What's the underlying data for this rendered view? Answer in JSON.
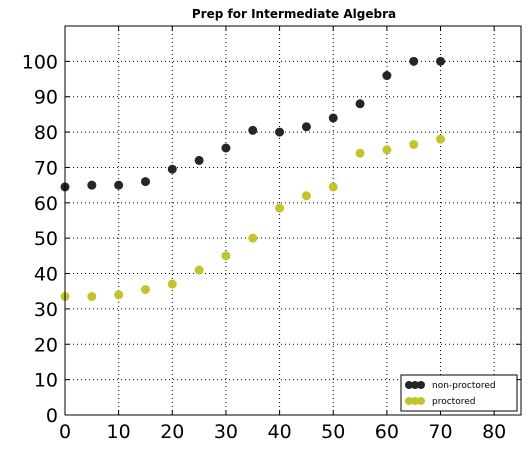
{
  "chart_data": {
    "type": "scatter",
    "title": "Prep for Intermediate Algebra",
    "xlabel": "",
    "ylabel": "",
    "xlim": [
      0,
      85
    ],
    "ylim": [
      0,
      110
    ],
    "xticks": [
      0,
      10,
      20,
      30,
      40,
      50,
      60,
      70,
      80
    ],
    "yticks": [
      0,
      10,
      20,
      30,
      40,
      50,
      60,
      70,
      80,
      90,
      100
    ],
    "grid": true,
    "legend_position": "bottom-right",
    "series": [
      {
        "name": "non-proctored",
        "color": "#262626",
        "x": [
          0,
          5,
          10,
          15,
          20,
          25,
          30,
          35,
          40,
          45,
          50,
          55,
          60,
          65,
          70
        ],
        "y": [
          64.5,
          65,
          65,
          66,
          69.5,
          72,
          75.5,
          80.5,
          80,
          81.5,
          84,
          88,
          96,
          100,
          100
        ]
      },
      {
        "name": "proctored",
        "color": "#c4c42a",
        "x": [
          0,
          5,
          10,
          15,
          20,
          25,
          30,
          35,
          40,
          45,
          50,
          55,
          60,
          65,
          70
        ],
        "y": [
          33.5,
          33.5,
          34,
          35.5,
          37,
          41,
          45,
          50,
          58.5,
          62,
          64.5,
          74,
          75,
          76.5,
          78
        ]
      }
    ]
  }
}
